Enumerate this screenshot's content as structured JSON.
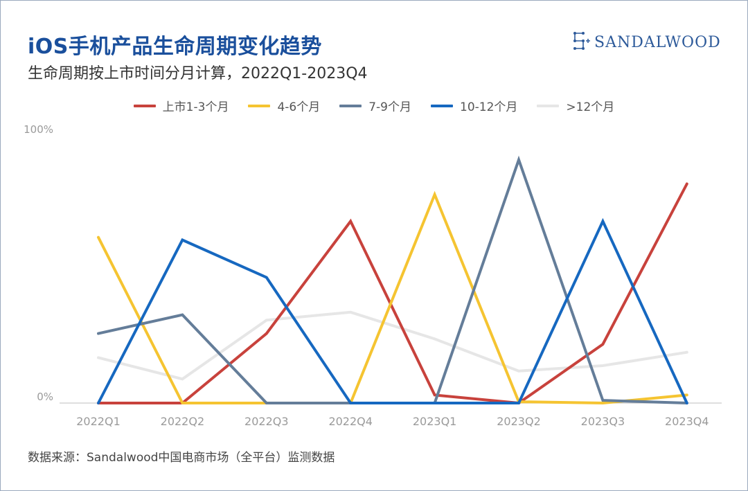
{
  "header": {
    "title": "iOS手机产品生命周期变化趋势",
    "subtitle": "生命周期按上市时间分月计算，2022Q1-2023Q4"
  },
  "brand": {
    "name": "SANDALWOOD",
    "icon": "sandalwood-logo-icon",
    "color": "#2d5a9a"
  },
  "footer": {
    "source": "数据来源：Sandalwood中国电商市场（全平台）监测数据"
  },
  "chart_data": {
    "type": "line",
    "categories": [
      "2022Q1",
      "2022Q2",
      "2022Q3",
      "2022Q4",
      "2023Q1",
      "2023Q2",
      "2023Q3",
      "2023Q4"
    ],
    "ylim": [
      0,
      100
    ],
    "y_ticks": [
      "0%",
      "100%"
    ],
    "legend_position": "top-center",
    "grid": false,
    "series": [
      {
        "name": "上市1-3个月",
        "color": "#c8423c",
        "values": [
          0,
          0,
          26,
          68,
          3,
          0,
          22,
          82
        ]
      },
      {
        "name": "4-6个月",
        "color": "#f5c431",
        "values": [
          62,
          0,
          0,
          0,
          78,
          0.5,
          0,
          3
        ]
      },
      {
        "name": "7-9个月",
        "color": "#647d99",
        "values": [
          26,
          33,
          0,
          0,
          0,
          91,
          1,
          0
        ]
      },
      {
        "name": "10-12个月",
        "color": "#1668c0",
        "values": [
          0,
          61,
          47,
          0,
          0,
          0,
          68,
          0
        ]
      },
      {
        "name": ">12个月",
        "color": "#e6e6e6",
        "values": [
          17,
          9,
          31,
          34,
          24,
          12,
          14,
          19
        ]
      }
    ]
  }
}
